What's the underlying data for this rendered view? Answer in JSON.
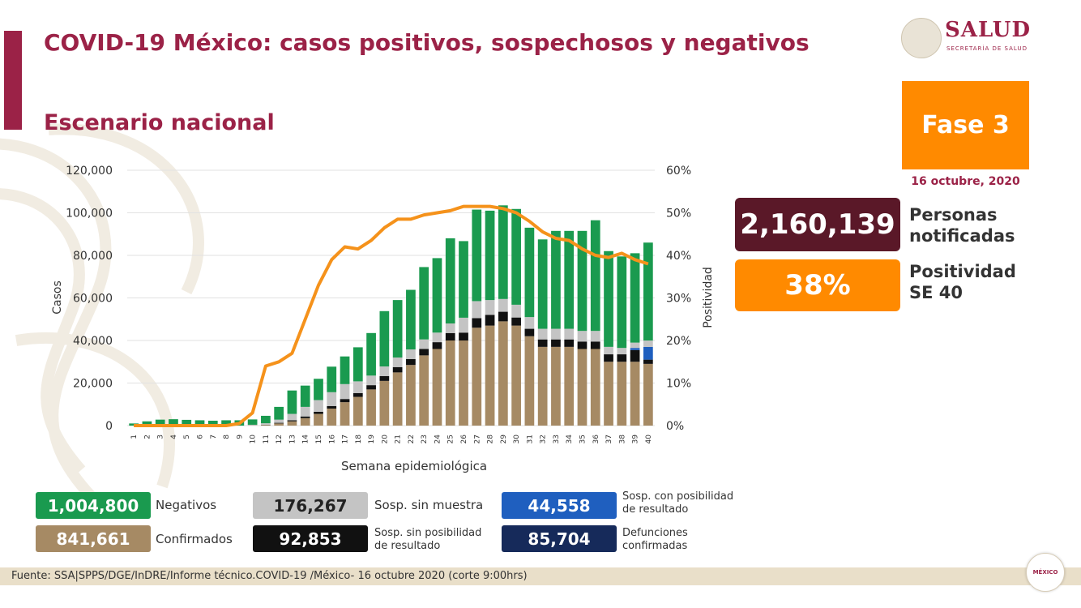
{
  "title": "COVID-19 México: casos positivos, sospechosos y negativos",
  "subtitle": "Escenario nacional",
  "logo": {
    "text": "SALUD",
    "subtext": "SECRETARÍA DE SALUD"
  },
  "phase": "Fase 3",
  "date": "16 octubre, 2020",
  "kpis": {
    "notified_value": "2,160,139",
    "notified_label_1": "Personas",
    "notified_label_2": "notificadas",
    "positivity_value": "38%",
    "positivity_label_1": "Positividad",
    "positivity_label_2": "SE 40"
  },
  "legend": {
    "negativos_value": "1,004,800",
    "negativos_label": "Negativos",
    "confirmados_value": "841,661",
    "confirmados_label": "Confirmados",
    "sosp_sin_muestra_value": "176,267",
    "sosp_sin_muestra_label": "Sosp. sin muestra",
    "sosp_sin_posib_value": "92,853",
    "sosp_sin_posib_label_1": "Sosp. sin posibilidad",
    "sosp_sin_posib_label_2": "de resultado",
    "sosp_con_posib_value": "44,558",
    "sosp_con_posib_label_1": "Sosp. con posibilidad",
    "sosp_con_posib_label_2": "de resultado",
    "defunciones_value": "85,704",
    "defunciones_label_1": "Defunciones",
    "defunciones_label_2": "confirmadas"
  },
  "footer": "Fuente: SSA|SPPS/DGE/InDRE/Informe técnico.COVID-19 /México- 16 octubre 2020 (corte 9:00hrs)",
  "gob_logo": "MÉXICO",
  "colors": {
    "confirmados": "#a68a64",
    "sosp_sin_posib": "#111111",
    "sosp_con_posib": "#1f5fbf",
    "sosp_sin_muestra": "#c4c4c4",
    "negativos": "#1a9a4f",
    "positividad": "#f5921b",
    "defunciones": "#162a5a",
    "title": "#9b2247"
  },
  "chart_data": {
    "type": "bar",
    "stacked": true,
    "xlabel": "Semana epidemiológica",
    "ylabel": "Casos",
    "y2label": "Positividad",
    "ylim": [
      0,
      120000
    ],
    "y2lim": [
      0,
      60
    ],
    "yticks": [
      "0",
      "20,000",
      "40,000",
      "60,000",
      "80,000",
      "100,000",
      "120,000"
    ],
    "y2ticks": [
      "0%",
      "10%",
      "20%",
      "30%",
      "40%",
      "50%",
      "60%"
    ],
    "categories": [
      "1",
      "2",
      "3",
      "4",
      "5",
      "6",
      "7",
      "8",
      "9",
      "10",
      "11",
      "12",
      "13",
      "14",
      "15",
      "16",
      "17",
      "18",
      "19",
      "20",
      "21",
      "22",
      "23",
      "24",
      "25",
      "26",
      "27",
      "28",
      "29",
      "30",
      "31",
      "32",
      "33",
      "34",
      "35",
      "36",
      "37",
      "38",
      "39",
      "40"
    ],
    "series": [
      {
        "key": "confirmados",
        "values": [
          0,
          0,
          0,
          0,
          0,
          0,
          0,
          0,
          0,
          100,
          300,
          1000,
          2000,
          3500,
          5500,
          8000,
          11000,
          13500,
          17000,
          21000,
          25000,
          28500,
          33000,
          36000,
          40000,
          40000,
          46000,
          47000,
          49000,
          47000,
          42000,
          37000,
          37000,
          37000,
          36000,
          36000,
          30000,
          30000,
          30000,
          29000
        ]
      },
      {
        "key": "sosp_sin_posib",
        "values": [
          0,
          0,
          0,
          0,
          0,
          0,
          0,
          0,
          0,
          0,
          100,
          300,
          500,
          800,
          1000,
          1200,
          1500,
          1800,
          2000,
          2300,
          2500,
          2800,
          3000,
          3200,
          3500,
          3700,
          4500,
          5000,
          4500,
          3800,
          3500,
          3500,
          3500,
          3500,
          3500,
          3500,
          3500,
          3500,
          5500,
          2000
        ]
      },
      {
        "key": "sosp_con_posib",
        "values": [
          0,
          0,
          0,
          0,
          0,
          0,
          0,
          0,
          0,
          0,
          0,
          0,
          0,
          0,
          0,
          0,
          0,
          0,
          0,
          0,
          0,
          0,
          0,
          0,
          0,
          0,
          0,
          0,
          0,
          0,
          0,
          0,
          0,
          0,
          0,
          0,
          0,
          0,
          1000,
          6000
        ]
      },
      {
        "key": "sosp_sin_muestra",
        "values": [
          0,
          0,
          0,
          0,
          0,
          0,
          0,
          0,
          0,
          300,
          700,
          1500,
          3000,
          4500,
          5500,
          6500,
          7000,
          5500,
          4500,
          4500,
          4500,
          4500,
          4500,
          4500,
          4500,
          7000,
          8000,
          7000,
          6000,
          6000,
          5500,
          5000,
          5000,
          5000,
          5000,
          5000,
          3500,
          3000,
          2500,
          3000
        ]
      },
      {
        "key": "negativos",
        "values": [
          1000,
          2000,
          2800,
          3000,
          2700,
          2500,
          2300,
          2500,
          2500,
          2500,
          3500,
          6000,
          11000,
          10000,
          10000,
          12000,
          13000,
          16000,
          20000,
          26000,
          27000,
          28000,
          34000,
          35000,
          40000,
          36000,
          43000,
          42000,
          44000,
          45000,
          42000,
          42000,
          46000,
          46000,
          47000,
          52000,
          45000,
          43000,
          42000,
          46000
        ]
      }
    ],
    "positividad": [
      0,
      0,
      0,
      0,
      0,
      0,
      0,
      0,
      0.5,
      3,
      14,
      15,
      17,
      25,
      33,
      39,
      42,
      41.5,
      43.5,
      46.5,
      48.5,
      48.5,
      49.5,
      50,
      50.5,
      51.5,
      51.5,
      51.5,
      51,
      50,
      48,
      45.5,
      44,
      43.5,
      41.5,
      40,
      39.5,
      40.5,
      39,
      38
    ]
  }
}
